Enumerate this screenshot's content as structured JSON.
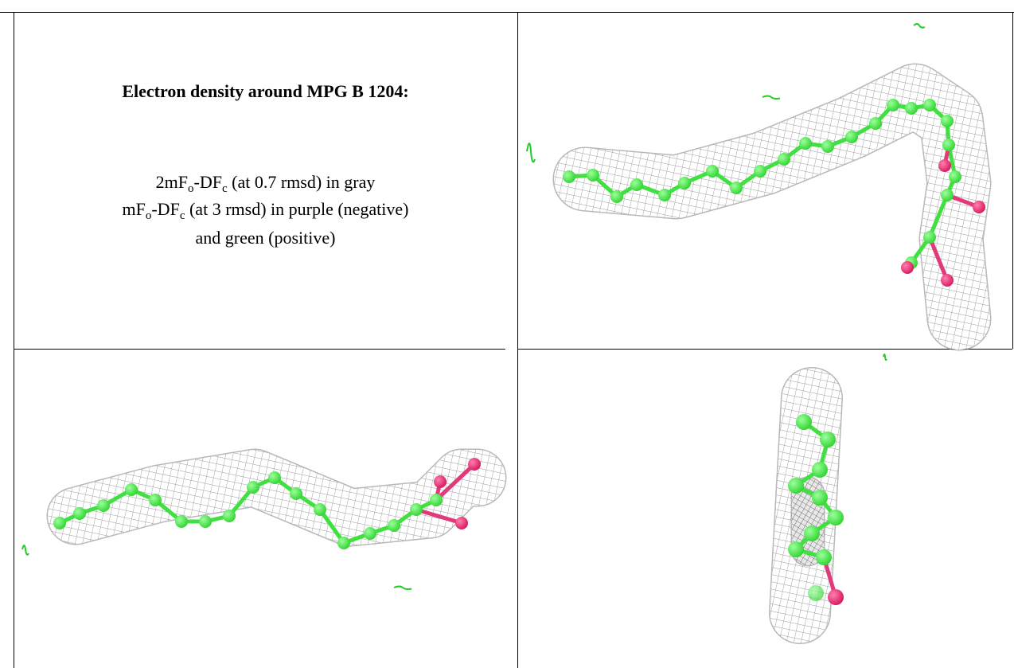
{
  "caption": {
    "title": "Electron density around MPG B 1204:",
    "line1": [
      "2mF",
      "o",
      "-DF",
      "c",
      " (at 0.7 rmsd) in gray"
    ],
    "line2": [
      "mF",
      "o",
      "-DF",
      "c",
      " (at 3 rmsd) in purple (negative)"
    ],
    "line3": "and green (positive)"
  }
}
